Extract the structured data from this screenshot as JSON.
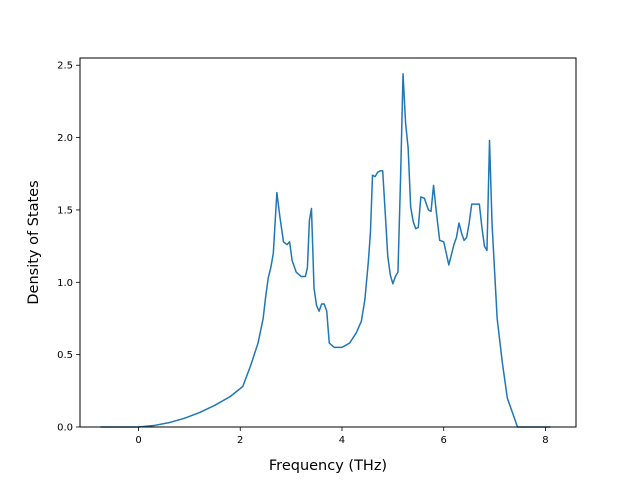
{
  "chart_data": {
    "type": "line",
    "title": "",
    "xlabel": "Frequency (THz)",
    "ylabel": "Density of States",
    "xlim": [
      -1.15,
      8.6
    ],
    "ylim": [
      0,
      2.55
    ],
    "xticks": [
      0,
      2,
      4,
      6,
      8
    ],
    "yticks": [
      0.0,
      0.5,
      1.0,
      1.5,
      2.0,
      2.5
    ],
    "xtick_labels": [
      "0",
      "2",
      "4",
      "6",
      "8"
    ],
    "ytick_labels": [
      "0.0",
      "0.5",
      "1.0",
      "1.5",
      "2.0",
      "2.5"
    ],
    "grid": false,
    "legend": "none",
    "series": [
      {
        "color": "#1f77b4",
        "x": [
          -0.75,
          0.0,
          0.3,
          0.6,
          0.9,
          1.2,
          1.5,
          1.8,
          2.05,
          2.2,
          2.35,
          2.45,
          2.5,
          2.55,
          2.6,
          2.65,
          2.72,
          2.78,
          2.85,
          2.92,
          2.97,
          3.02,
          3.1,
          3.2,
          3.28,
          3.32,
          3.36,
          3.4,
          3.45,
          3.5,
          3.55,
          3.6,
          3.65,
          3.7,
          3.75,
          3.85,
          4.0,
          4.15,
          4.28,
          4.38,
          4.45,
          4.52,
          4.56,
          4.6,
          4.65,
          4.7,
          4.75,
          4.8,
          4.85,
          4.9,
          4.95,
          5.0,
          5.05,
          5.1,
          5.15,
          5.2,
          5.25,
          5.3,
          5.35,
          5.4,
          5.45,
          5.5,
          5.55,
          5.62,
          5.7,
          5.75,
          5.8,
          5.85,
          5.92,
          6.0,
          6.05,
          6.1,
          6.2,
          6.25,
          6.3,
          6.35,
          6.4,
          6.45,
          6.5,
          6.55,
          6.62,
          6.7,
          6.75,
          6.8,
          6.85,
          6.9,
          6.95,
          7.05,
          7.15,
          7.25,
          7.35,
          7.45,
          7.6,
          7.8,
          8.1
        ],
        "y": [
          0.0,
          0.0,
          0.01,
          0.03,
          0.06,
          0.1,
          0.15,
          0.21,
          0.28,
          0.42,
          0.58,
          0.75,
          0.9,
          1.03,
          1.1,
          1.2,
          1.62,
          1.45,
          1.28,
          1.26,
          1.28,
          1.15,
          1.07,
          1.04,
          1.04,
          1.1,
          1.43,
          1.51,
          0.96,
          0.84,
          0.8,
          0.85,
          0.85,
          0.8,
          0.58,
          0.55,
          0.55,
          0.58,
          0.65,
          0.73,
          0.88,
          1.15,
          1.35,
          1.74,
          1.73,
          1.76,
          1.77,
          1.77,
          1.48,
          1.18,
          1.05,
          0.99,
          1.04,
          1.07,
          1.7,
          2.44,
          2.1,
          1.93,
          1.52,
          1.42,
          1.37,
          1.38,
          1.59,
          1.58,
          1.5,
          1.49,
          1.67,
          1.5,
          1.29,
          1.28,
          1.2,
          1.12,
          1.26,
          1.31,
          1.41,
          1.34,
          1.29,
          1.31,
          1.41,
          1.54,
          1.54,
          1.54,
          1.38,
          1.25,
          1.22,
          1.98,
          1.4,
          0.75,
          0.45,
          0.2,
          0.1,
          0.0,
          0.0,
          0.0,
          0.0
        ]
      }
    ]
  }
}
